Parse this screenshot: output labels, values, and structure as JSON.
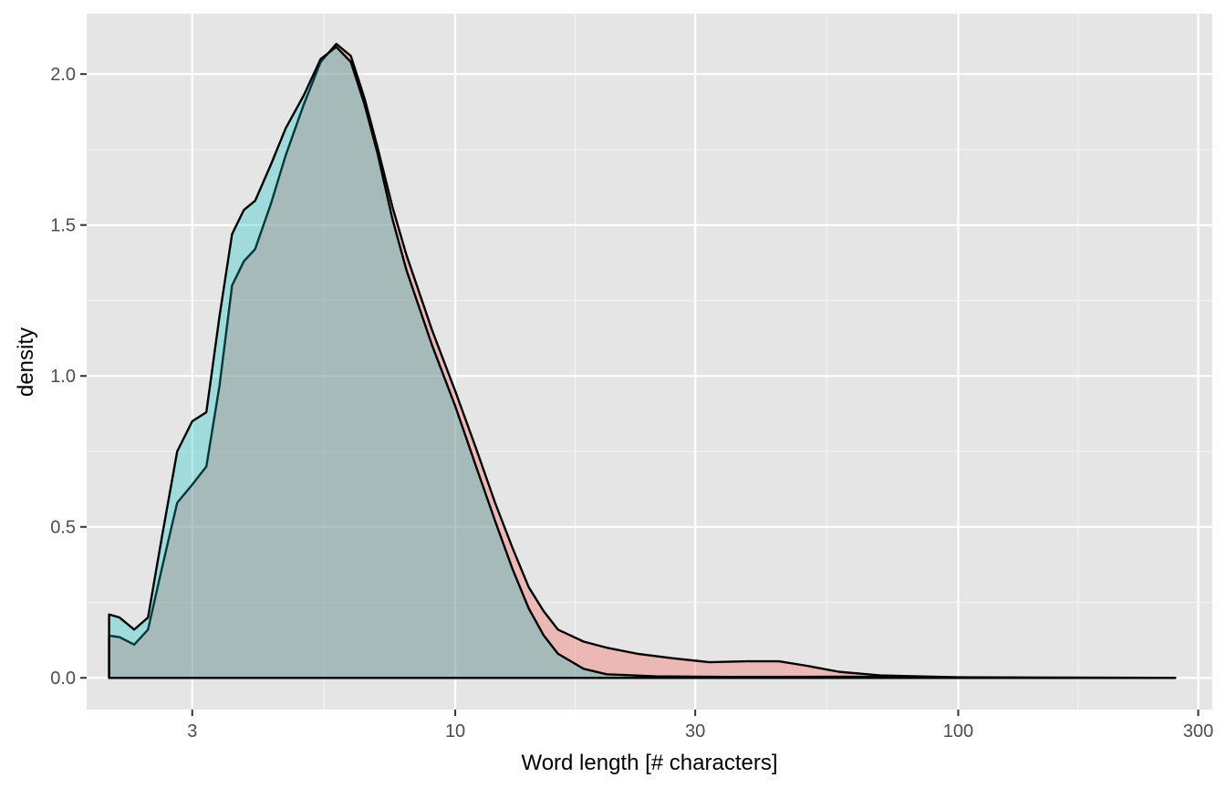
{
  "chart_data": {
    "type": "area",
    "title": "",
    "xlabel": "Word length [# characters]",
    "ylabel": "density",
    "x_scale": "log10",
    "xlim": [
      1.85,
      320
    ],
    "ylim": [
      -0.105,
      2.2
    ],
    "x_ticks": [
      {
        "value": 3,
        "label": "3"
      },
      {
        "value": 10,
        "label": "10"
      },
      {
        "value": 30,
        "label": "30"
      },
      {
        "value": 100,
        "label": "100"
      },
      {
        "value": 300,
        "label": "300"
      }
    ],
    "x_minor_ticks": [
      1.732,
      5.477,
      17.32,
      54.77,
      173.2
    ],
    "y_ticks": [
      {
        "value": 0.0,
        "label": "0.0"
      },
      {
        "value": 0.5,
        "label": "0.5"
      },
      {
        "value": 1.0,
        "label": "1.0"
      },
      {
        "value": 1.5,
        "label": "1.5"
      },
      {
        "value": 2.0,
        "label": "2.0"
      }
    ],
    "y_minor_ticks": [
      0.25,
      0.75,
      1.25,
      1.75
    ],
    "grid": true,
    "background": "#e5e5e5",
    "legend": "none",
    "series": [
      {
        "name": "series-red",
        "fill": "#f8766d",
        "fill_opacity": 0.4,
        "line": "#000000",
        "points": [
          [
            2.05,
            0.14
          ],
          [
            2.15,
            0.135
          ],
          [
            2.3,
            0.11
          ],
          [
            2.45,
            0.16
          ],
          [
            2.6,
            0.35
          ],
          [
            2.8,
            0.58
          ],
          [
            3.0,
            0.64
          ],
          [
            3.2,
            0.7
          ],
          [
            3.4,
            0.97
          ],
          [
            3.6,
            1.3
          ],
          [
            3.8,
            1.38
          ],
          [
            4.0,
            1.42
          ],
          [
            4.3,
            1.57
          ],
          [
            4.6,
            1.73
          ],
          [
            5.0,
            1.9
          ],
          [
            5.4,
            2.04
          ],
          [
            5.8,
            2.1
          ],
          [
            6.2,
            2.06
          ],
          [
            6.6,
            1.92
          ],
          [
            7.0,
            1.76
          ],
          [
            7.5,
            1.56
          ],
          [
            8.0,
            1.4
          ],
          [
            9.0,
            1.15
          ],
          [
            10.0,
            0.95
          ],
          [
            11.0,
            0.76
          ],
          [
            12.0,
            0.58
          ],
          [
            13.0,
            0.43
          ],
          [
            14.0,
            0.3
          ],
          [
            15.0,
            0.22
          ],
          [
            16.0,
            0.16
          ],
          [
            18.0,
            0.12
          ],
          [
            20.0,
            0.1
          ],
          [
            23.0,
            0.08
          ],
          [
            27.0,
            0.065
          ],
          [
            32.0,
            0.052
          ],
          [
            38.0,
            0.055
          ],
          [
            44.0,
            0.055
          ],
          [
            50.0,
            0.04
          ],
          [
            58.0,
            0.02
          ],
          [
            70.0,
            0.008
          ],
          [
            100.0,
            0.002
          ],
          [
            150.0,
            0.001
          ],
          [
            270.0,
            0.0
          ]
        ]
      },
      {
        "name": "series-teal",
        "fill": "#00bfc4",
        "fill_opacity": 0.3,
        "line": "#000000",
        "points": [
          [
            2.05,
            0.21
          ],
          [
            2.15,
            0.2
          ],
          [
            2.3,
            0.16
          ],
          [
            2.45,
            0.2
          ],
          [
            2.6,
            0.45
          ],
          [
            2.8,
            0.75
          ],
          [
            3.0,
            0.85
          ],
          [
            3.2,
            0.88
          ],
          [
            3.4,
            1.2
          ],
          [
            3.6,
            1.47
          ],
          [
            3.8,
            1.55
          ],
          [
            4.0,
            1.58
          ],
          [
            4.3,
            1.7
          ],
          [
            4.6,
            1.82
          ],
          [
            5.0,
            1.93
          ],
          [
            5.4,
            2.05
          ],
          [
            5.8,
            2.09
          ],
          [
            6.2,
            2.04
          ],
          [
            6.6,
            1.9
          ],
          [
            7.0,
            1.74
          ],
          [
            7.5,
            1.52
          ],
          [
            8.0,
            1.35
          ],
          [
            9.0,
            1.1
          ],
          [
            10.0,
            0.9
          ],
          [
            11.0,
            0.7
          ],
          [
            12.0,
            0.52
          ],
          [
            13.0,
            0.36
          ],
          [
            14.0,
            0.23
          ],
          [
            15.0,
            0.14
          ],
          [
            16.0,
            0.08
          ],
          [
            18.0,
            0.03
          ],
          [
            20.0,
            0.012
          ],
          [
            25.0,
            0.005
          ],
          [
            35.0,
            0.003
          ],
          [
            60.0,
            0.004
          ],
          [
            100.0,
            0.001
          ],
          [
            270.0,
            0.0
          ]
        ]
      }
    ]
  }
}
